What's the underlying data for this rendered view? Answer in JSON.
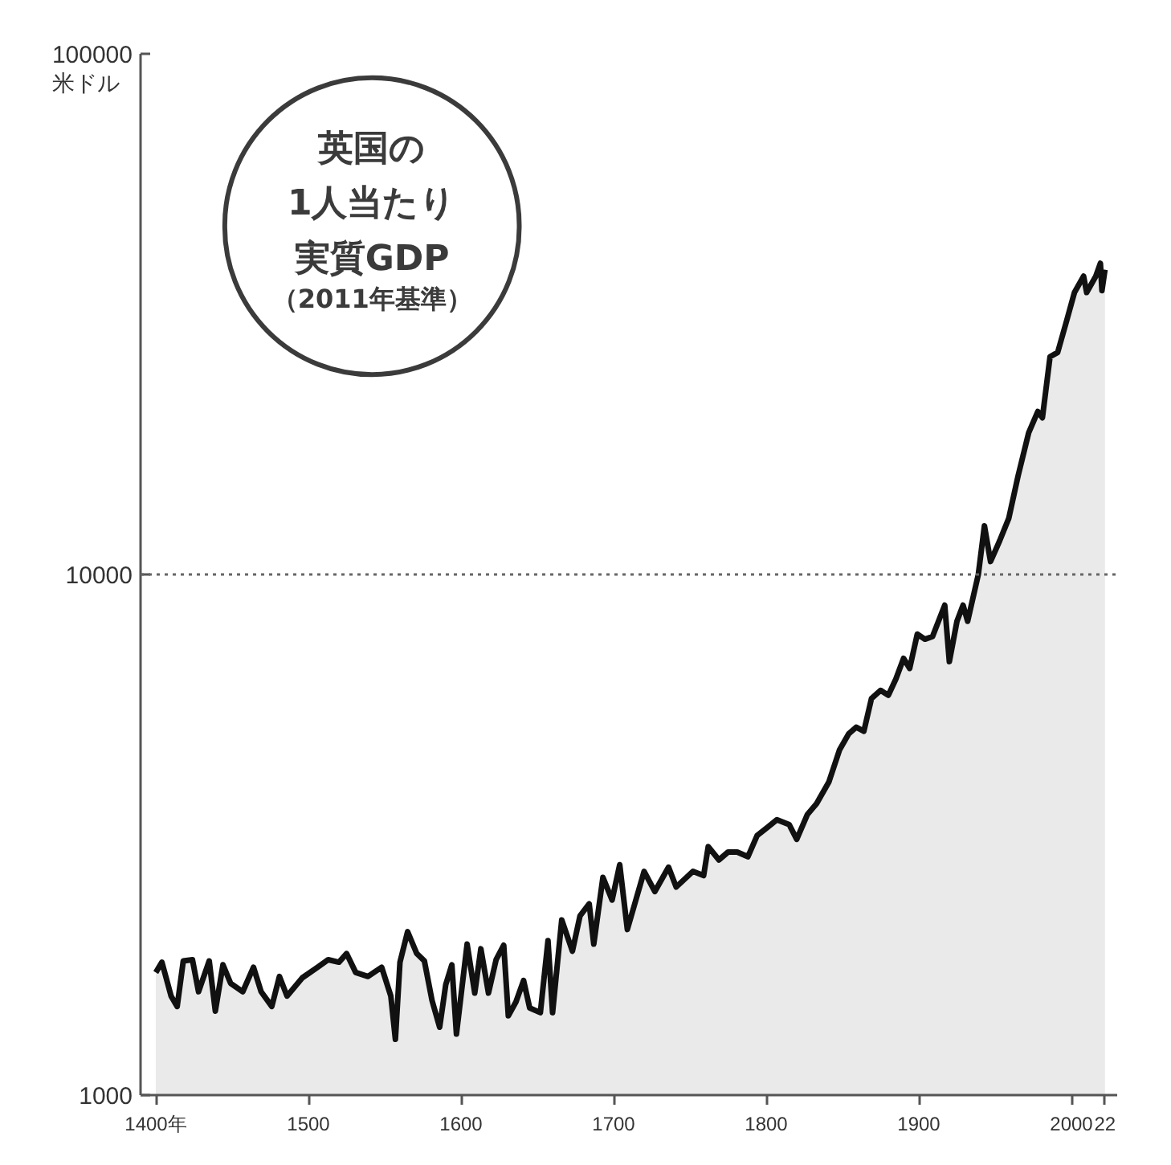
{
  "chart_data": {
    "type": "area",
    "title": "英国の1人当たり実質GDP",
    "subtitle": "（2011年基準）",
    "ylabel": "米ドル",
    "x": [
      1400,
      1404,
      1410,
      1414,
      1418,
      1424,
      1428,
      1435,
      1439,
      1444,
      1449,
      1457,
      1464,
      1469,
      1476,
      1481,
      1486,
      1496,
      1506,
      1513,
      1520,
      1525,
      1531,
      1539,
      1548,
      1554,
      1557,
      1560,
      1565,
      1571,
      1576,
      1581,
      1586,
      1590,
      1594,
      1597,
      1604,
      1609,
      1613,
      1618,
      1623,
      1628,
      1631,
      1636,
      1641,
      1645,
      1652,
      1657,
      1660,
      1666,
      1673,
      1678,
      1684,
      1687,
      1693,
      1699,
      1704,
      1709,
      1720,
      1727,
      1736,
      1741,
      1752,
      1759,
      1762,
      1769,
      1775,
      1781,
      1788,
      1794,
      1801,
      1807,
      1815,
      1820,
      1827,
      1833,
      1841,
      1848,
      1854,
      1859,
      1864,
      1869,
      1875,
      1880,
      1885,
      1890,
      1894,
      1899,
      1904,
      1909,
      1917,
      1920,
      1925,
      1929,
      1932,
      1939,
      1943,
      1947,
      1953,
      1959,
      1965,
      1972,
      1978,
      1981,
      1986,
      1991,
      1997,
      2002,
      2008,
      2010,
      2016,
      2019,
      2020,
      2022
    ],
    "values": [
      1720,
      1800,
      1550,
      1480,
      1810,
      1820,
      1580,
      1810,
      1450,
      1780,
      1640,
      1580,
      1760,
      1580,
      1480,
      1690,
      1550,
      1680,
      1760,
      1820,
      1800,
      1870,
      1720,
      1690,
      1760,
      1550,
      1280,
      1800,
      2060,
      1870,
      1810,
      1520,
      1350,
      1630,
      1780,
      1310,
      1950,
      1570,
      1910,
      1570,
      1820,
      1940,
      1420,
      1510,
      1660,
      1470,
      1440,
      1980,
      1440,
      2170,
      1890,
      2210,
      2330,
      1950,
      2620,
      2370,
      2770,
      2080,
      2690,
      2460,
      2740,
      2510,
      2690,
      2640,
      3000,
      2830,
      2930,
      2930,
      2870,
      3150,
      3270,
      3380,
      3310,
      3100,
      3460,
      3630,
      3990,
      4600,
      4940,
      5090,
      5000,
      5780,
      5990,
      5860,
      6300,
      6900,
      6600,
      7680,
      7510,
      7600,
      8730,
      6800,
      8130,
      8730,
      8130,
      10000,
      12400,
      10590,
      11610,
      12830,
      15440,
      18720,
      20560,
      20000,
      26200,
      26700,
      30800,
      34800,
      37400,
      34800,
      37400,
      39600,
      35100,
      38500
    ],
    "color": "#111111",
    "log": true,
    "xlim": [
      1390,
      2030
    ],
    "ylim": [
      1000,
      100000
    ],
    "xticks": [
      {
        "value": 1400,
        "label": "1400年"
      },
      1500,
      1600,
      1700,
      1800,
      1900,
      2000,
      {
        "value": 2022,
        "label": "22"
      }
    ],
    "yticks": [
      1000,
      10000,
      100000
    ],
    "ref_lines": [
      {
        "axis": "y",
        "value": 10000,
        "color": "#666666",
        "line_style": "dotted"
      }
    ]
  }
}
